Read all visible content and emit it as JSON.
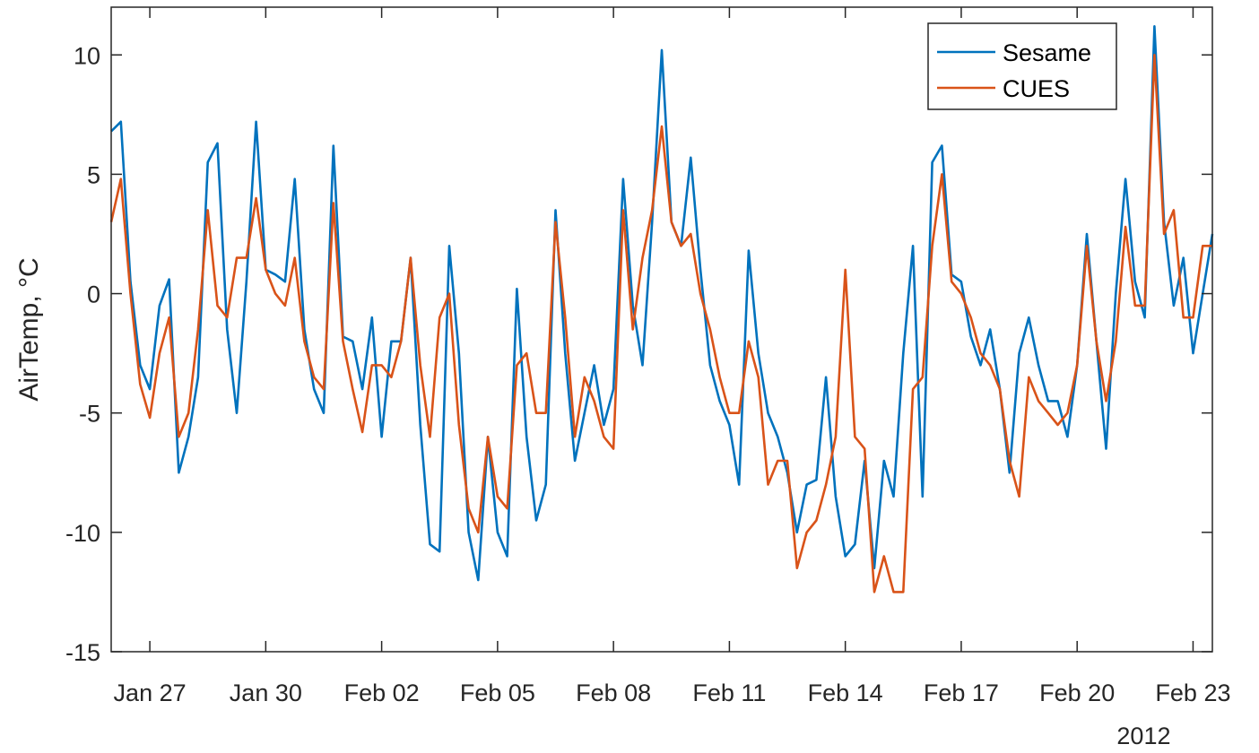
{
  "chart_data": {
    "type": "line",
    "xlabel": "",
    "ylabel": "AirTemp, °C",
    "x_axis_secondary_label": "2012",
    "xlim": [
      "2012-01-26T00:00",
      "2012-02-23T12:00"
    ],
    "ylim": [
      -15,
      12
    ],
    "x_ticks": [
      {
        "date": "2012-01-27",
        "label": "Jan 27"
      },
      {
        "date": "2012-01-30",
        "label": "Jan 30"
      },
      {
        "date": "2012-02-02",
        "label": "Feb 02"
      },
      {
        "date": "2012-02-05",
        "label": "Feb 05"
      },
      {
        "date": "2012-02-08",
        "label": "Feb 08"
      },
      {
        "date": "2012-02-11",
        "label": "Feb 11"
      },
      {
        "date": "2012-02-14",
        "label": "Feb 14"
      },
      {
        "date": "2012-02-17",
        "label": "Feb 17"
      },
      {
        "date": "2012-02-20",
        "label": "Feb 20"
      },
      {
        "date": "2012-02-23",
        "label": "Feb 23"
      }
    ],
    "y_ticks": [
      {
        "value": 10,
        "label": "10"
      },
      {
        "value": 5,
        "label": "5"
      },
      {
        "value": 0,
        "label": "0"
      },
      {
        "value": -5,
        "label": "-5"
      },
      {
        "value": -10,
        "label": "-10"
      },
      {
        "value": -15,
        "label": "-15"
      }
    ],
    "grid": false,
    "legend": {
      "placement": "top-right"
    },
    "x": [
      "2012-01-26T00:00",
      "2012-01-26T06:00",
      "2012-01-26T12:00",
      "2012-01-26T18:00",
      "2012-01-27T00:00",
      "2012-01-27T06:00",
      "2012-01-27T12:00",
      "2012-01-27T18:00",
      "2012-01-28T00:00",
      "2012-01-28T06:00",
      "2012-01-28T12:00",
      "2012-01-28T18:00",
      "2012-01-29T00:00",
      "2012-01-29T06:00",
      "2012-01-29T12:00",
      "2012-01-29T18:00",
      "2012-01-30T00:00",
      "2012-01-30T06:00",
      "2012-01-30T12:00",
      "2012-01-30T18:00",
      "2012-01-31T00:00",
      "2012-01-31T06:00",
      "2012-01-31T12:00",
      "2012-01-31T18:00",
      "2012-02-01T00:00",
      "2012-02-01T06:00",
      "2012-02-01T12:00",
      "2012-02-01T18:00",
      "2012-02-02T00:00",
      "2012-02-02T06:00",
      "2012-02-02T12:00",
      "2012-02-02T18:00",
      "2012-02-03T00:00",
      "2012-02-03T06:00",
      "2012-02-03T12:00",
      "2012-02-03T18:00",
      "2012-02-04T00:00",
      "2012-02-04T06:00",
      "2012-02-04T12:00",
      "2012-02-04T18:00",
      "2012-02-05T00:00",
      "2012-02-05T06:00",
      "2012-02-05T12:00",
      "2012-02-05T18:00",
      "2012-02-06T00:00",
      "2012-02-06T06:00",
      "2012-02-06T12:00",
      "2012-02-06T18:00",
      "2012-02-07T00:00",
      "2012-02-07T06:00",
      "2012-02-07T12:00",
      "2012-02-07T18:00",
      "2012-02-08T00:00",
      "2012-02-08T06:00",
      "2012-02-08T12:00",
      "2012-02-08T18:00",
      "2012-02-09T00:00",
      "2012-02-09T06:00",
      "2012-02-09T12:00",
      "2012-02-09T18:00",
      "2012-02-10T00:00",
      "2012-02-10T06:00",
      "2012-02-10T12:00",
      "2012-02-10T18:00",
      "2012-02-11T00:00",
      "2012-02-11T06:00",
      "2012-02-11T12:00",
      "2012-02-11T18:00",
      "2012-02-12T00:00",
      "2012-02-12T06:00",
      "2012-02-12T12:00",
      "2012-02-12T18:00",
      "2012-02-13T00:00",
      "2012-02-13T06:00",
      "2012-02-13T12:00",
      "2012-02-13T18:00",
      "2012-02-14T00:00",
      "2012-02-14T06:00",
      "2012-02-14T12:00",
      "2012-02-14T18:00",
      "2012-02-15T00:00",
      "2012-02-15T06:00",
      "2012-02-15T12:00",
      "2012-02-15T18:00",
      "2012-02-16T00:00",
      "2012-02-16T06:00",
      "2012-02-16T12:00",
      "2012-02-16T18:00",
      "2012-02-17T00:00",
      "2012-02-17T06:00",
      "2012-02-17T12:00",
      "2012-02-17T18:00",
      "2012-02-18T00:00",
      "2012-02-18T06:00",
      "2012-02-18T12:00",
      "2012-02-18T18:00",
      "2012-02-19T00:00",
      "2012-02-19T06:00",
      "2012-02-19T12:00",
      "2012-02-19T18:00",
      "2012-02-20T00:00",
      "2012-02-20T06:00",
      "2012-02-20T12:00",
      "2012-02-20T18:00",
      "2012-02-21T00:00",
      "2012-02-21T06:00",
      "2012-02-21T12:00",
      "2012-02-21T18:00",
      "2012-02-22T00:00",
      "2012-02-22T06:00",
      "2012-02-22T12:00",
      "2012-02-22T18:00",
      "2012-02-23T00:00",
      "2012-02-23T06:00",
      "2012-02-23T12:00"
    ],
    "series": [
      {
        "name": "Sesame",
        "color": "#0072BD",
        "values": [
          6.8,
          7.2,
          0.5,
          -3.0,
          -4.0,
          -0.5,
          0.6,
          -7.5,
          -6.0,
          -3.5,
          5.5,
          6.3,
          -1.5,
          -5.0,
          0.5,
          7.2,
          1.0,
          0.8,
          0.5,
          4.8,
          -1.5,
          -4.0,
          -5.0,
          6.2,
          -1.8,
          -2.0,
          -4.0,
          -1.0,
          -6.0,
          -2.0,
          -2.0,
          1.5,
          -5.5,
          -10.5,
          -10.8,
          2.0,
          -2.5,
          -10.0,
          -12.0,
          -6.0,
          -10.0,
          -11.0,
          0.2,
          -6.0,
          -9.5,
          -8.0,
          3.5,
          -2.5,
          -7.0,
          -5.0,
          -3.0,
          -5.5,
          -4.0,
          4.8,
          -0.5,
          -3.0,
          3.0,
          10.2,
          3.0,
          2.0,
          5.7,
          1.0,
          -3.0,
          -4.5,
          -5.5,
          -8.0,
          1.8,
          -2.5,
          -5.0,
          -6.0,
          -7.5,
          -10.0,
          -8.0,
          -7.8,
          -3.5,
          -8.5,
          -11.0,
          -10.5,
          -7.0,
          -11.5,
          -7.0,
          -8.5,
          -2.5,
          2.0,
          -8.5,
          5.5,
          6.2,
          0.8,
          0.5,
          -1.8,
          -3.0,
          -1.5,
          -4.0,
          -7.5,
          -2.5,
          -1.0,
          -3.0,
          -4.5,
          -4.5,
          -6.0,
          -3.0,
          2.5,
          -2.0,
          -6.5,
          0.0,
          4.8,
          0.5,
          -1.0,
          11.2,
          3.0,
          -0.5,
          1.5,
          -2.5,
          0.0,
          2.5
        ]
      },
      {
        "name": "CUES",
        "color": "#D95319",
        "values": [
          3.0,
          4.8,
          0.0,
          -3.8,
          -5.2,
          -2.5,
          -1.0,
          -6.0,
          -5.0,
          -1.5,
          3.5,
          -0.5,
          -1.0,
          1.5,
          1.5,
          4.0,
          1.0,
          0.0,
          -0.5,
          1.5,
          -2.0,
          -3.5,
          -4.0,
          3.8,
          -2.0,
          -4.0,
          -5.8,
          -3.0,
          -3.0,
          -3.5,
          -2.0,
          1.5,
          -3.0,
          -6.0,
          -1.0,
          0.0,
          -5.5,
          -9.0,
          -10.0,
          -6.0,
          -8.5,
          -9.0,
          -3.0,
          -2.5,
          -5.0,
          -5.0,
          3.0,
          -1.0,
          -6.0,
          -3.5,
          -4.5,
          -6.0,
          -6.5,
          3.5,
          -1.5,
          1.5,
          3.5,
          7.0,
          3.0,
          2.0,
          2.5,
          0.0,
          -1.5,
          -3.5,
          -5.0,
          -5.0,
          -2.0,
          -3.5,
          -8.0,
          -7.0,
          -7.0,
          -11.5,
          -10.0,
          -9.5,
          -8.0,
          -6.0,
          1.0,
          -6.0,
          -6.5,
          -12.5,
          -11.0,
          -12.5,
          -12.5,
          -4.0,
          -3.5,
          2.0,
          5.0,
          0.5,
          0.0,
          -1.0,
          -2.5,
          -3.0,
          -4.0,
          -7.0,
          -8.5,
          -3.5,
          -4.5,
          -5.0,
          -5.5,
          -5.0,
          -3.0,
          2.0,
          -2.0,
          -4.5,
          -2.0,
          2.8,
          -0.5,
          -0.5,
          10.0,
          2.5,
          3.5,
          -1.0,
          -1.0,
          2.0,
          2.0
        ]
      }
    ]
  }
}
